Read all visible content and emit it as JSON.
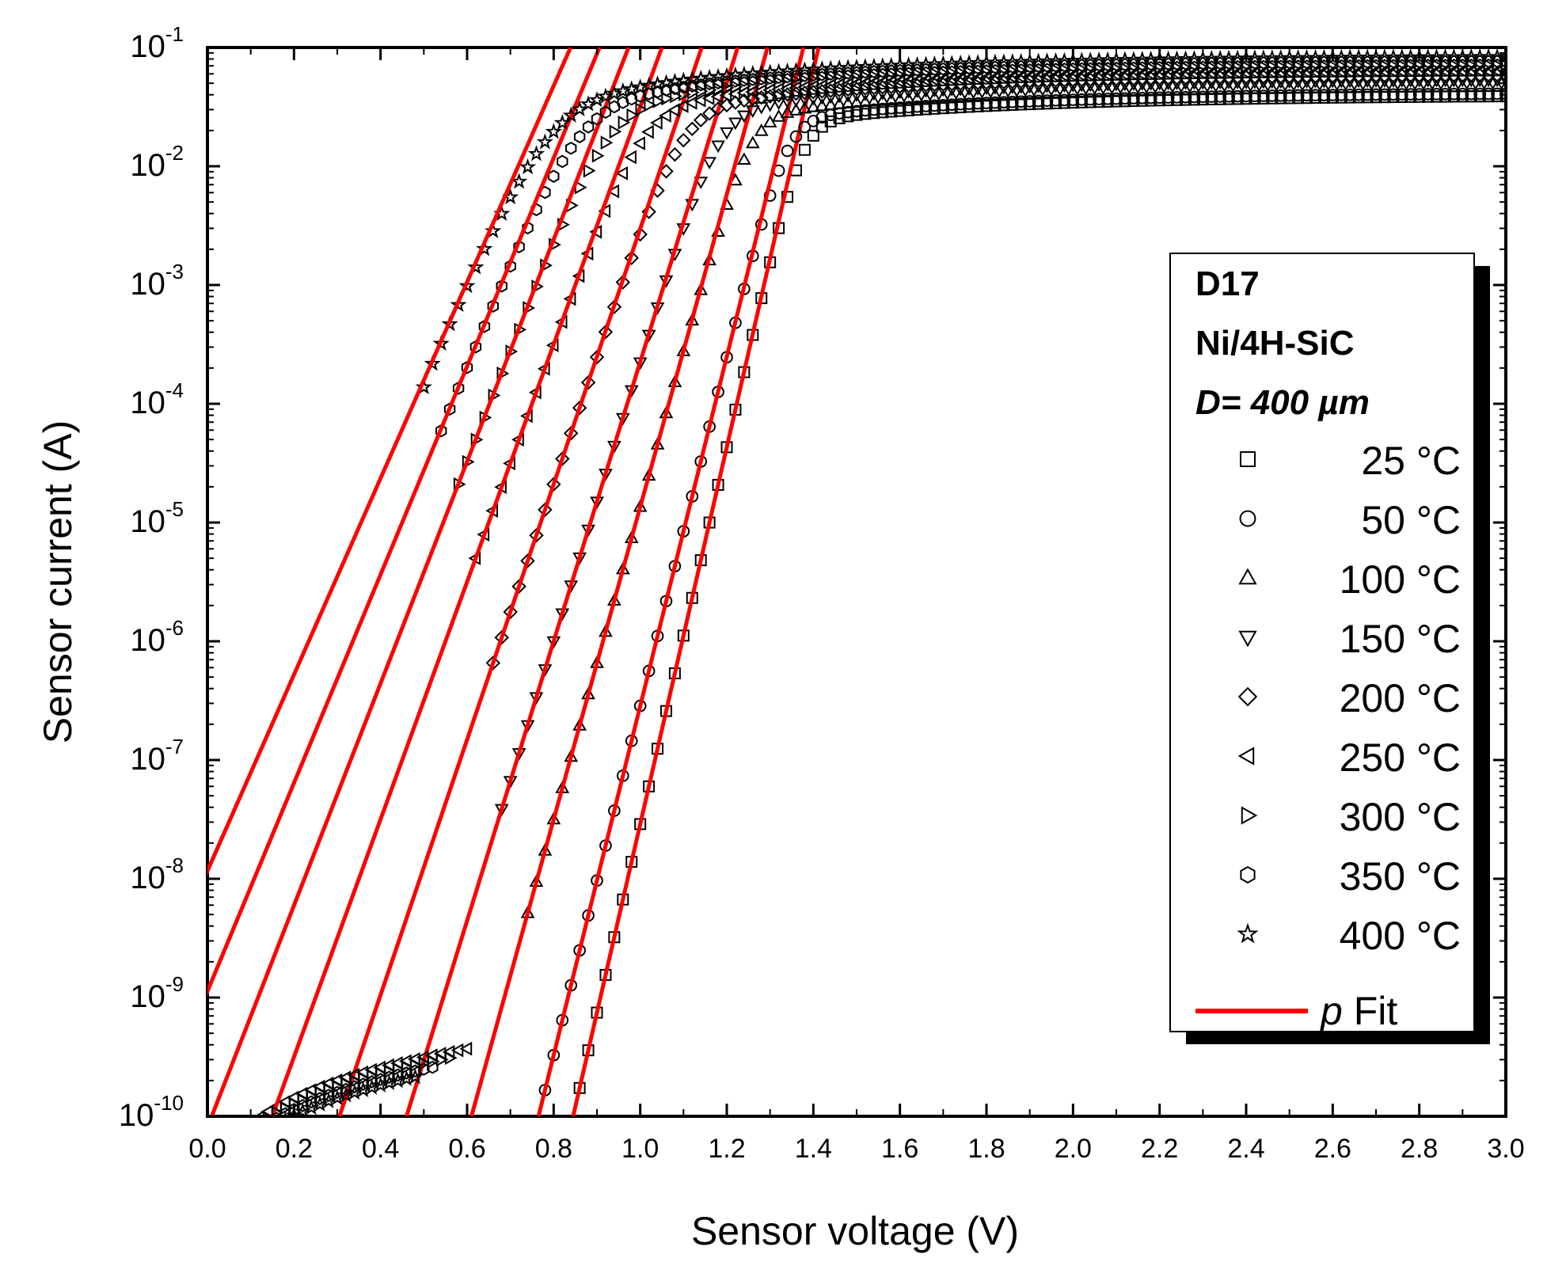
{
  "chart_data": {
    "type": "scatter",
    "title": "",
    "xlabel": "Sensor voltage (V)",
    "ylabel": "Sensor current (A)",
    "xlim": [
      0.0,
      3.0
    ],
    "ylim": [
      1e-10,
      0.1
    ],
    "yscale": "log",
    "grid": false,
    "legend_position": "right",
    "x_ticks": [
      "0.0",
      "0.2",
      "0.4",
      "0.6",
      "0.8",
      "1.0",
      "1.2",
      "1.4",
      "1.6",
      "1.8",
      "2.0",
      "2.2",
      "2.4",
      "2.6",
      "2.8",
      "3.0"
    ],
    "y_tick_base": "10",
    "y_tick_exponents": [
      "-10",
      "-9",
      "-8",
      "-7",
      "-6",
      "-5",
      "-4",
      "-3",
      "-2",
      "-1"
    ],
    "legend": {
      "title_lines": [
        "D17",
        "Ni/4H-SiC"
      ],
      "dimension_prefix": "D= 400 ",
      "dimension_unit": "µm",
      "fit_label_symbol": "p",
      "fit_label_text": " Fit"
    },
    "series": [
      {
        "name": "25 °C",
        "marker": "square",
        "v10": 0.845,
        "slope_v_per_decade": 0.063,
        "v_knee": 1.3,
        "i_sat": 0.04
      },
      {
        "name": "50 °C",
        "marker": "circle",
        "v10": 0.765,
        "slope_v_per_decade": 0.068,
        "v_knee": 1.26,
        "i_sat": 0.042
      },
      {
        "name": "100 °C",
        "marker": "triangle-up",
        "v10": 0.61,
        "slope_v_per_decade": 0.076,
        "v_knee": 1.2,
        "i_sat": 0.048
      },
      {
        "name": "150 °C",
        "marker": "triangle-down",
        "v10": 0.46,
        "slope_v_per_decade": 0.085,
        "v_knee": 1.13,
        "i_sat": 0.055
      },
      {
        "name": "200 °C",
        "marker": "diamond",
        "v10": 0.305,
        "slope_v_per_decade": 0.093,
        "v_knee": 1.07,
        "i_sat": 0.06
      },
      {
        "name": "250 °C",
        "marker": "triangle-left",
        "v10": 0.15,
        "slope_v_per_decade": 0.1,
        "v_knee": 1.0,
        "i_sat": 0.065
      },
      {
        "name": "300 °C",
        "marker": "triangle-right",
        "v10": 0.01,
        "slope_v_per_decade": 0.107,
        "v_knee": 0.94,
        "i_sat": 0.072
      },
      {
        "name": "350 °C",
        "marker": "hexagon",
        "v10": -0.12,
        "slope_v_per_decade": 0.114,
        "v_knee": 0.88,
        "i_sat": 0.078
      },
      {
        "name": "400 °C",
        "marker": "star",
        "v10": -0.25,
        "slope_v_per_decade": 0.121,
        "v_knee": 0.82,
        "i_sat": 0.085
      }
    ],
    "fit_color": "#ff0000",
    "marker_color": "#000000"
  }
}
